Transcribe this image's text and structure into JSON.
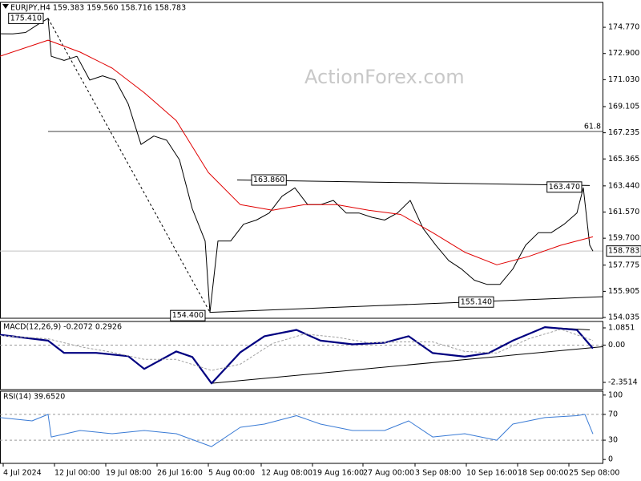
{
  "chart_data": [
    {
      "type": "line",
      "title": "EURJPY,H4 159.383 159.560 158.716 158.783",
      "watermark": "ActionForex.com",
      "xlim": [
        0,
        188
      ],
      "ylim": [
        153.98,
        176.55
      ],
      "yticks": [
        154.035,
        155.905,
        157.775,
        {
          "value": 159.7,
          "label": "159.700"
        },
        {
          "value": 161.57,
          "label": "161.570"
        },
        {
          "value": 163.44,
          "label": "163.440"
        },
        165.365,
        167.235,
        169.105,
        {
          "value": 171.03,
          "label": "171.030"
        },
        {
          "value": 172.9,
          "label": "172.900"
        },
        {
          "value": 174.77,
          "label": "174.770"
        }
      ],
      "grid": false,
      "series": [
        {
          "color": "#000000",
          "width": 1,
          "x": [
            0,
            4,
            8,
            12,
            15,
            16,
            20,
            24,
            28,
            32,
            36,
            40,
            44,
            48,
            52,
            56,
            60,
            64,
            65.5,
            68,
            72,
            76,
            80,
            84,
            88,
            92,
            96,
            100,
            104,
            108,
            112,
            116,
            120,
            124,
            128,
            132,
            136,
            140,
            144,
            148,
            152,
            156,
            160,
            164,
            168,
            172,
            176,
            180,
            182,
            184,
            185
          ],
          "values": [
            174.31,
            174.3,
            174.4,
            175.0,
            175.41,
            172.7,
            172.4,
            172.7,
            171.0,
            171.3,
            171.0,
            169.3,
            166.4,
            167.0,
            166.7,
            165.3,
            161.8,
            159.5,
            154.4,
            159.5,
            159.5,
            160.7,
            161.0,
            161.5,
            162.7,
            163.3,
            162.1,
            162.1,
            162.4,
            161.5,
            161.5,
            161.2,
            161.0,
            161.5,
            162.4,
            160.4,
            159.2,
            158.1,
            157.5,
            156.7,
            156.4,
            156.4,
            157.5,
            159.2,
            160.1,
            160.1,
            160.7,
            161.5,
            163.3,
            159.2,
            158.783
          ]
        },
        {
          "color": "#e00000",
          "width": 1,
          "x": [
            0,
            15,
            25,
            35,
            45,
            55,
            65,
            75,
            85,
            95,
            105,
            115,
            125,
            135,
            145,
            155,
            165,
            175,
            185
          ],
          "values": [
            172.7,
            173.85,
            173.0,
            171.85,
            170.1,
            168.1,
            164.4,
            162.1,
            161.7,
            162.1,
            162.1,
            161.7,
            161.4,
            160.1,
            158.7,
            157.8,
            158.4,
            159.2,
            159.8
          ]
        }
      ],
      "hlines": [
        {
          "label": "61.8",
          "value": 167.33,
          "x_start": 15,
          "color": "#404040"
        },
        {
          "label": "158.783",
          "value": 158.783,
          "x_start": 0,
          "color": "#c0c0c0",
          "tag": true
        }
      ],
      "trendlines": [
        {
          "from": [
            15,
            175.41
          ],
          "to": [
            65.5,
            154.4
          ],
          "dashed": true
        },
        {
          "from": [
            74,
            163.86
          ],
          "to": [
            184,
            163.47
          ],
          "dashed": false
        },
        {
          "from": [
            65.5,
            154.4
          ],
          "to": [
            188,
            155.52
          ],
          "dashed": false
        }
      ],
      "annotations": [
        {
          "label": "175.410",
          "value": 175.41,
          "x": 15
        },
        {
          "label": "154.400",
          "value": 154.4,
          "x": 65.5
        },
        {
          "label": "163.860",
          "value": 163.86,
          "x": 74
        },
        {
          "label": "155.140",
          "value": 155.14,
          "x": 155
        },
        {
          "label": "163.470",
          "value": 163.47,
          "x": 184
        }
      ]
    },
    {
      "type": "line",
      "title": "MACD(12,26,9) -0.2072 0.2926",
      "xlim": [
        0,
        188
      ],
      "ylim": [
        -2.806,
        1.49
      ],
      "yticks": [
        1.0851,
        {
          "value": 0,
          "label": "0.00"
        },
        -2.3514
      ],
      "grid": "inner",
      "series": [
        {
          "color": "#000080",
          "width": 2.2,
          "x": [
            0,
            15,
            20,
            30,
            40,
            45,
            55,
            60,
            66,
            75,
            82.5,
            92.5,
            100,
            110,
            120,
            127.5,
            135,
            145,
            152.5,
            160,
            170,
            180,
            185
          ],
          "values": [
            0.65,
            0.28,
            -0.49,
            -0.49,
            -0.7,
            -1.5,
            -0.4,
            -0.75,
            -2.41,
            -0.45,
            0.56,
            0.96,
            0.28,
            0.05,
            0.15,
            0.56,
            -0.5,
            -0.73,
            -0.5,
            0.28,
            1.13,
            0.96,
            -0.2072
          ]
        },
        {
          "color": "#a0a0a0",
          "width": 1,
          "dashed": true,
          "x": [
            0,
            15,
            25,
            35,
            45,
            55,
            66,
            75,
            85,
            95,
            105,
            115,
            125,
            135,
            145,
            155,
            165,
            175,
            185
          ],
          "values": [
            0.6,
            0.4,
            -0.1,
            -0.45,
            -0.9,
            -0.9,
            -1.6,
            -1.2,
            0.1,
            0.7,
            0.5,
            0.15,
            0.2,
            0.2,
            -0.4,
            -0.5,
            0.4,
            1.0,
            0.2926
          ]
        }
      ],
      "trendlines": [
        {
          "from": [
            66,
            -2.41
          ],
          "to": [
            188,
            -0.1
          ],
          "dashed": false
        },
        {
          "from": [
            170,
            1.13
          ],
          "to": [
            184,
            0.96
          ],
          "dashed": false
        }
      ]
    },
    {
      "type": "line",
      "title": "RSI(14) 39.6520",
      "xlim": [
        0,
        188
      ],
      "ylim": [
        -6,
        106
      ],
      "yticks": [
        100,
        70,
        30,
        0
      ],
      "grid": "inner",
      "series": [
        {
          "color": "#3a7bd5",
          "width": 1,
          "x": [
            0,
            10,
            15,
            16,
            25,
            35,
            45,
            55,
            66,
            75,
            82.5,
            92.5,
            100,
            110,
            120,
            127.5,
            135,
            145,
            155,
            160,
            170,
            180,
            182.5,
            185
          ],
          "values": [
            65,
            60,
            70,
            35,
            45,
            40,
            45,
            40,
            20,
            50,
            55,
            68,
            55,
            45,
            45,
            60,
            35,
            40,
            30,
            55,
            65,
            68,
            70,
            39.652
          ]
        }
      ],
      "xticks": [
        {
          "value": 1,
          "label": "4 Jul 2024"
        },
        {
          "value": 17,
          "label": "12 Jul 00:00"
        },
        {
          "value": 33,
          "label": "19 Jul 08:00"
        },
        {
          "value": 49,
          "label": "26 Jul 16:00"
        },
        {
          "value": 65,
          "label": "5 Aug 00:00"
        },
        {
          "value": 81.5,
          "label": "12 Aug 08:00"
        },
        {
          "value": 97.5,
          "label": "19 Aug 16:00"
        },
        {
          "value": 113.25,
          "label": "27 Aug 00:00"
        },
        {
          "value": 129.5,
          "label": "3 Sep 08:00"
        },
        {
          "value": 145.5,
          "label": "10 Sep 16:00"
        },
        {
          "value": 161.5,
          "label": "18 Sep 00:00"
        },
        {
          "value": 177.5,
          "label": "25 Sep 08:00"
        }
      ]
    }
  ]
}
